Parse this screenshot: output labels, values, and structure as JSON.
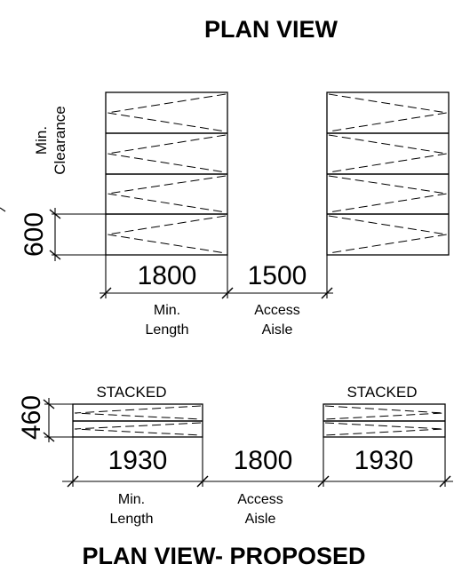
{
  "top": {
    "title": "PLAN VIEW",
    "side_label_line1": "Min.",
    "side_label_line2": "Clearance",
    "dim_width": "600",
    "dim_length": "1800",
    "dim_aisle": "1500",
    "length_label_line1": "Min.",
    "length_label_line2": "Length",
    "aisle_label_line1": "Access",
    "aisle_label_line2": "Aisle"
  },
  "bottom": {
    "title": "PLAN VIEW- PROPOSED",
    "stacked_left": "STACKED",
    "stacked_right": "STACKED",
    "dim_height": "460",
    "dim_length_left": "1930",
    "dim_aisle": "1800",
    "dim_length_right": "1930",
    "length_label_line1": "Min.",
    "length_label_line2": "Length",
    "aisle_label_line1": "Access",
    "aisle_label_line2": "Aisle"
  }
}
